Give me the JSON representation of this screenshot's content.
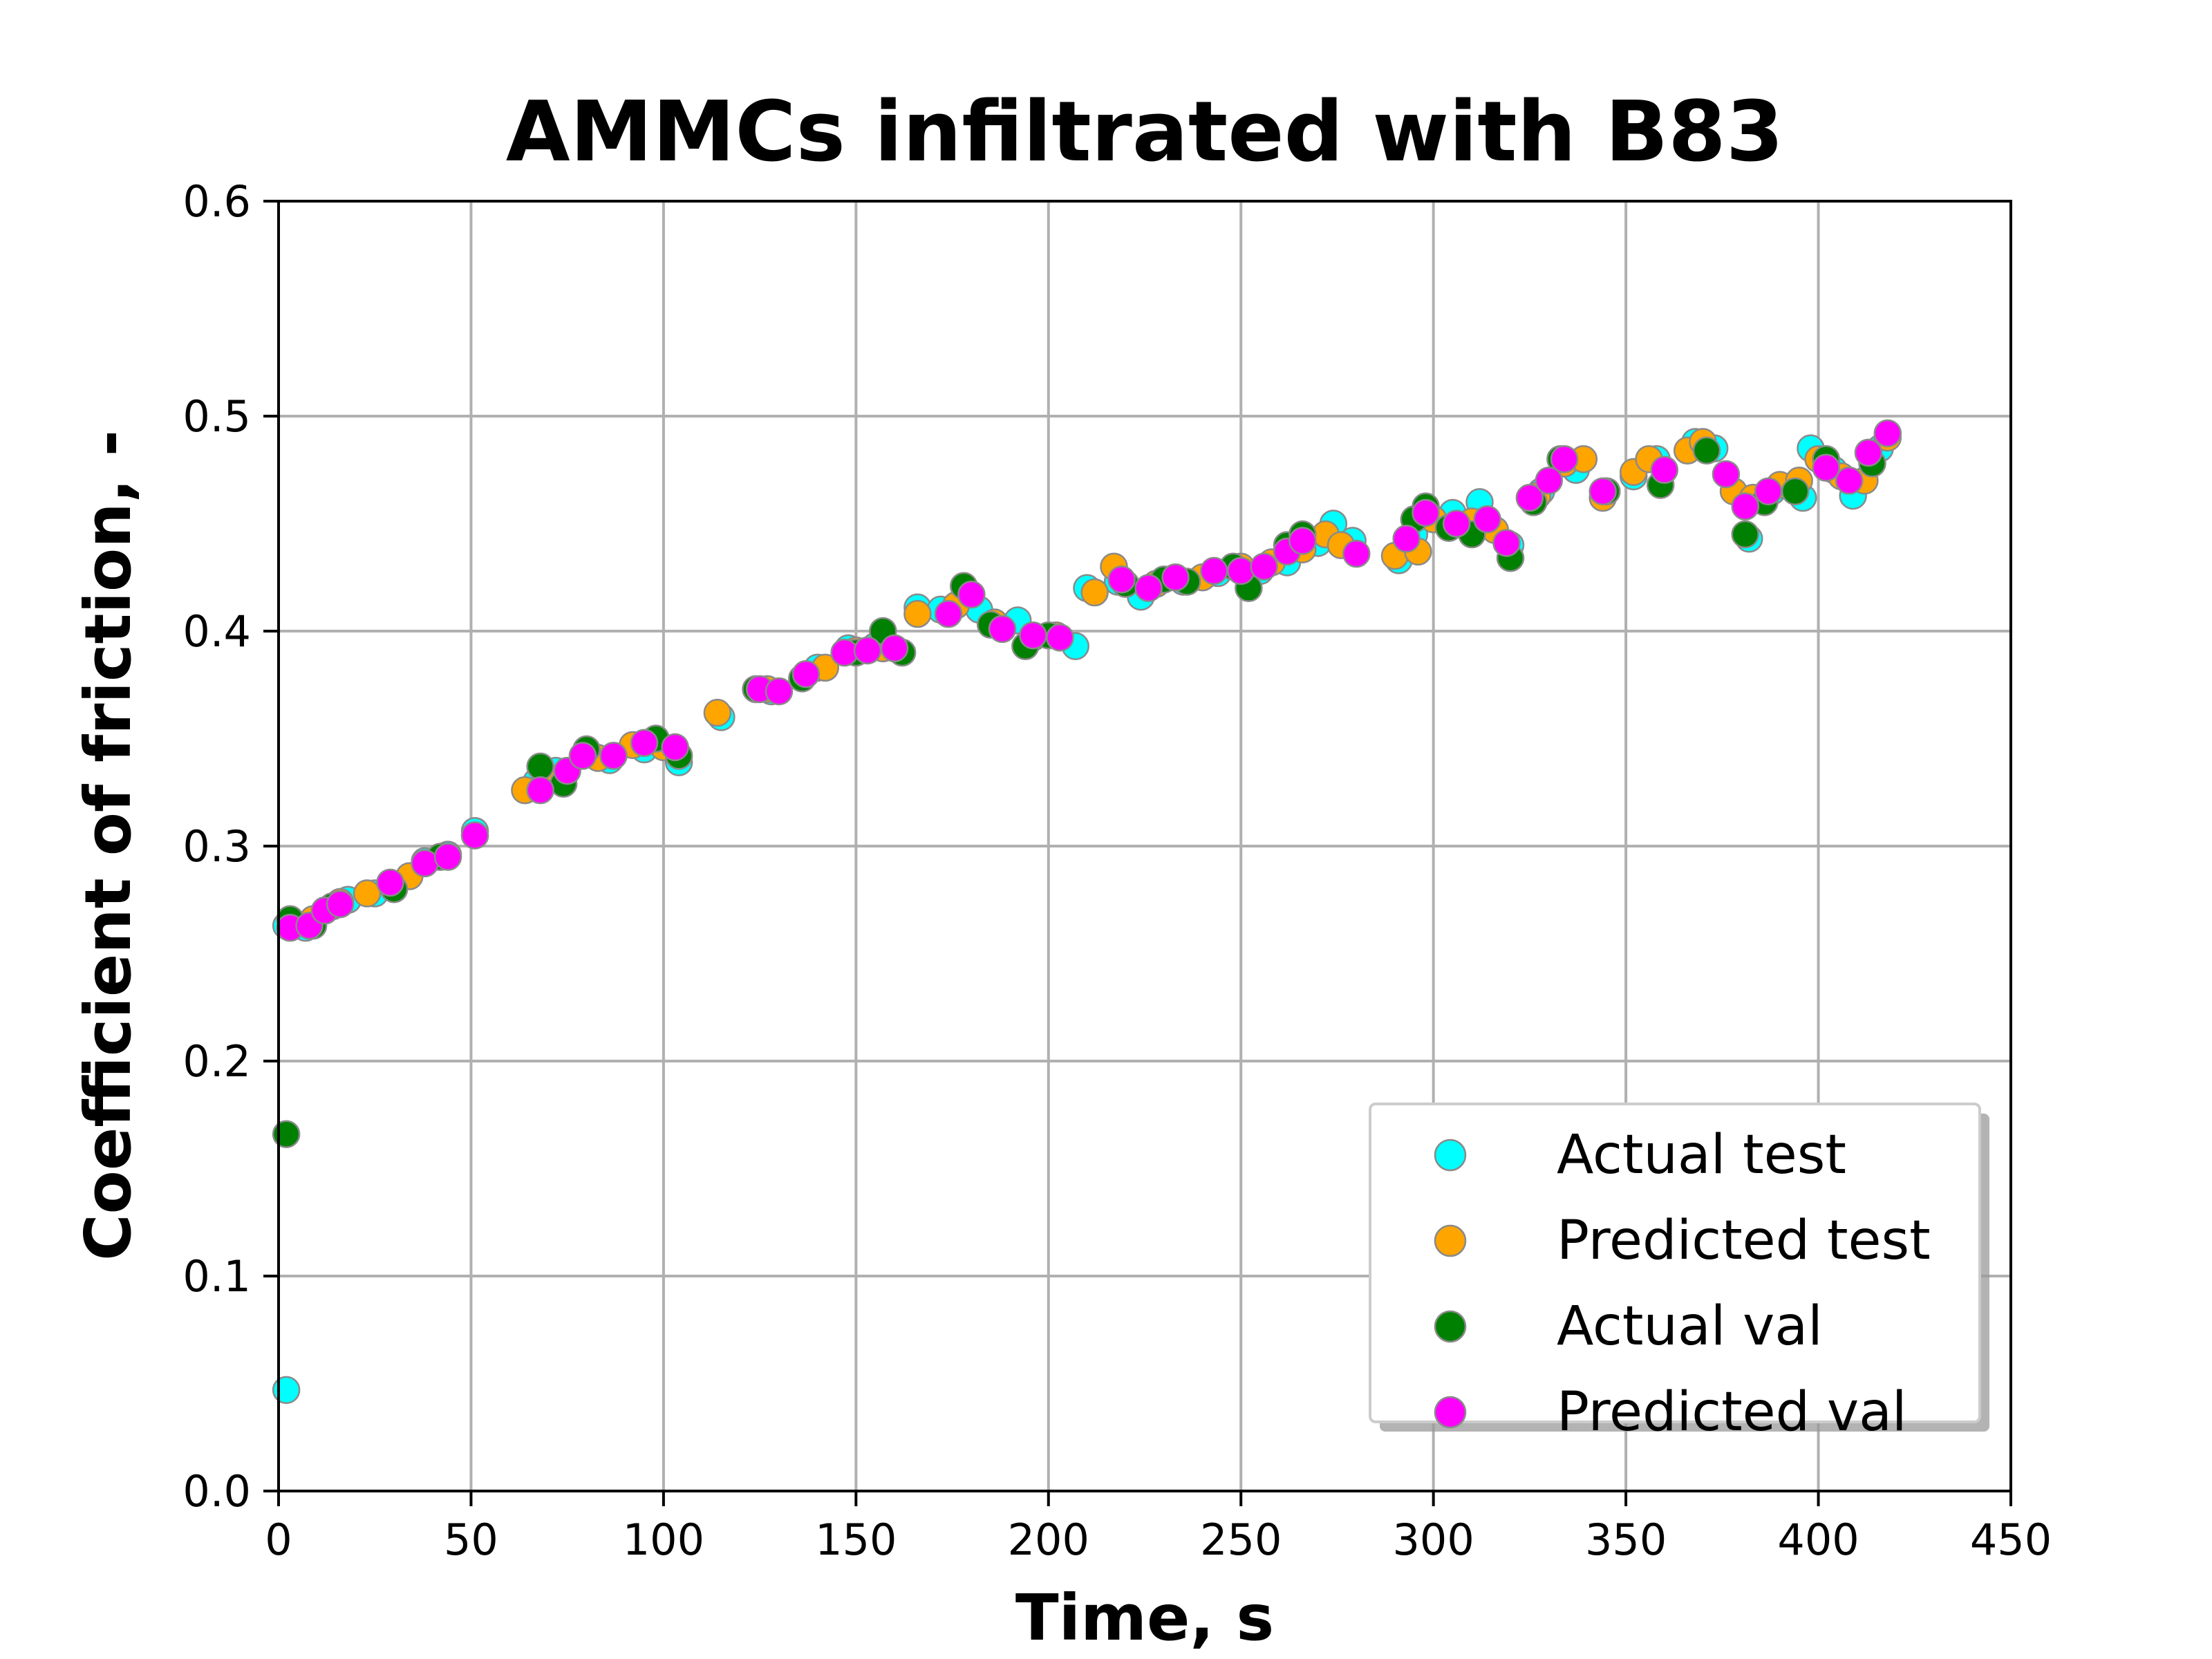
{
  "chart_data": {
    "type": "scatter",
    "title": "AMMCs infiltrated with B83",
    "xlabel": "Time, s",
    "ylabel": "Coefficient of friction, -",
    "xlim": [
      0,
      450
    ],
    "ylim": [
      0.0,
      0.6
    ],
    "xticks": [
      "0",
      "50",
      "100",
      "150",
      "200",
      "250",
      "300",
      "350",
      "400",
      "450"
    ],
    "yticks": [
      "0.0",
      "0.1",
      "0.2",
      "0.3",
      "0.4",
      "0.5",
      "0.6"
    ],
    "grid": true,
    "legend_position": "lower-right",
    "series": [
      {
        "name": "Actual test",
        "color": "#00ffff",
        "points": [
          [
            2,
            0.047
          ],
          [
            2,
            0.263
          ],
          [
            7,
            0.262
          ],
          [
            12,
            0.27
          ],
          [
            18,
            0.275
          ],
          [
            25,
            0.278
          ],
          [
            30,
            0.28
          ],
          [
            38,
            0.293
          ],
          [
            44,
            0.296
          ],
          [
            51,
            0.307
          ],
          [
            67,
            0.33
          ],
          [
            72,
            0.335
          ],
          [
            80,
            0.343
          ],
          [
            86,
            0.34
          ],
          [
            95,
            0.345
          ],
          [
            104,
            0.339
          ],
          [
            115,
            0.36
          ],
          [
            128,
            0.372
          ],
          [
            140,
            0.383
          ],
          [
            148,
            0.392
          ],
          [
            155,
            0.393
          ],
          [
            166,
            0.411
          ],
          [
            172,
            0.41
          ],
          [
            182,
            0.41
          ],
          [
            192,
            0.405
          ],
          [
            207,
            0.393
          ],
          [
            210,
            0.42
          ],
          [
            218,
            0.423
          ],
          [
            224,
            0.416
          ],
          [
            235,
            0.423
          ],
          [
            244,
            0.427
          ],
          [
            255,
            0.428
          ],
          [
            262,
            0.432
          ],
          [
            270,
            0.441
          ],
          [
            274,
            0.45
          ],
          [
            279,
            0.442
          ],
          [
            291,
            0.433
          ],
          [
            295,
            0.445
          ],
          [
            305,
            0.455
          ],
          [
            312,
            0.46
          ],
          [
            320,
            0.44
          ],
          [
            328,
            0.465
          ],
          [
            337,
            0.475
          ],
          [
            345,
            0.465
          ],
          [
            352,
            0.472
          ],
          [
            358,
            0.48
          ],
          [
            368,
            0.488
          ],
          [
            373,
            0.485
          ],
          [
            382,
            0.443
          ],
          [
            388,
            0.465
          ],
          [
            396,
            0.462
          ],
          [
            398,
            0.485
          ],
          [
            404,
            0.475
          ],
          [
            409,
            0.463
          ],
          [
            416,
            0.485
          ]
        ]
      },
      {
        "name": "Predicted test",
        "color": "#ffa500",
        "points": [
          [
            4,
            0.264
          ],
          [
            9,
            0.266
          ],
          [
            16,
            0.274
          ],
          [
            23,
            0.278
          ],
          [
            34,
            0.286
          ],
          [
            42,
            0.295
          ],
          [
            51,
            0.305
          ],
          [
            64,
            0.326
          ],
          [
            70,
            0.332
          ],
          [
            83,
            0.341
          ],
          [
            92,
            0.347
          ],
          [
            100,
            0.346
          ],
          [
            114,
            0.362
          ],
          [
            127,
            0.373
          ],
          [
            142,
            0.383
          ],
          [
            150,
            0.391
          ],
          [
            157,
            0.392
          ],
          [
            166,
            0.408
          ],
          [
            176,
            0.412
          ],
          [
            186,
            0.404
          ],
          [
            196,
            0.397
          ],
          [
            202,
            0.398
          ],
          [
            212,
            0.418
          ],
          [
            217,
            0.43
          ],
          [
            228,
            0.422
          ],
          [
            240,
            0.425
          ],
          [
            250,
            0.43
          ],
          [
            258,
            0.432
          ],
          [
            266,
            0.438
          ],
          [
            272,
            0.445
          ],
          [
            276,
            0.44
          ],
          [
            290,
            0.435
          ],
          [
            296,
            0.437
          ],
          [
            300,
            0.452
          ],
          [
            310,
            0.451
          ],
          [
            316,
            0.447
          ],
          [
            327,
            0.463
          ],
          [
            334,
            0.478
          ],
          [
            339,
            0.48
          ],
          [
            344,
            0.462
          ],
          [
            352,
            0.474
          ],
          [
            356,
            0.48
          ],
          [
            366,
            0.484
          ],
          [
            370,
            0.488
          ],
          [
            378,
            0.465
          ],
          [
            383,
            0.462
          ],
          [
            390,
            0.468
          ],
          [
            395,
            0.47
          ],
          [
            400,
            0.48
          ],
          [
            406,
            0.472
          ],
          [
            412,
            0.47
          ],
          [
            418,
            0.49
          ]
        ]
      },
      {
        "name": "Actual val",
        "color": "#008000",
        "points": [
          [
            2,
            0.166
          ],
          [
            3,
            0.266
          ],
          [
            9,
            0.263
          ],
          [
            14,
            0.272
          ],
          [
            30,
            0.28
          ],
          [
            42,
            0.295
          ],
          [
            68,
            0.337
          ],
          [
            74,
            0.329
          ],
          [
            80,
            0.345
          ],
          [
            98,
            0.35
          ],
          [
            104,
            0.342
          ],
          [
            124,
            0.373
          ],
          [
            136,
            0.378
          ],
          [
            150,
            0.39
          ],
          [
            157,
            0.4
          ],
          [
            162,
            0.39
          ],
          [
            178,
            0.421
          ],
          [
            185,
            0.403
          ],
          [
            194,
            0.393
          ],
          [
            200,
            0.398
          ],
          [
            220,
            0.422
          ],
          [
            230,
            0.424
          ],
          [
            236,
            0.423
          ],
          [
            248,
            0.43
          ],
          [
            252,
            0.42
          ],
          [
            262,
            0.44
          ],
          [
            266,
            0.445
          ],
          [
            295,
            0.452
          ],
          [
            298,
            0.458
          ],
          [
            304,
            0.448
          ],
          [
            310,
            0.445
          ],
          [
            320,
            0.434
          ],
          [
            326,
            0.46
          ],
          [
            333,
            0.48
          ],
          [
            345,
            0.465
          ],
          [
            359,
            0.468
          ],
          [
            371,
            0.484
          ],
          [
            381,
            0.445
          ],
          [
            386,
            0.46
          ],
          [
            394,
            0.465
          ],
          [
            402,
            0.48
          ],
          [
            408,
            0.47
          ],
          [
            414,
            0.478
          ]
        ]
      },
      {
        "name": "Predicted val",
        "color": "#ff00ff",
        "points": [
          [
            3,
            0.262
          ],
          [
            8,
            0.263
          ],
          [
            12,
            0.27
          ],
          [
            16,
            0.273
          ],
          [
            29,
            0.283
          ],
          [
            38,
            0.292
          ],
          [
            44,
            0.295
          ],
          [
            51,
            0.305
          ],
          [
            68,
            0.326
          ],
          [
            75,
            0.335
          ],
          [
            79,
            0.342
          ],
          [
            87,
            0.342
          ],
          [
            95,
            0.348
          ],
          [
            103,
            0.346
          ],
          [
            125,
            0.373
          ],
          [
            130,
            0.372
          ],
          [
            137,
            0.38
          ],
          [
            147,
            0.39
          ],
          [
            153,
            0.391
          ],
          [
            160,
            0.392
          ],
          [
            174,
            0.408
          ],
          [
            180,
            0.417
          ],
          [
            188,
            0.401
          ],
          [
            196,
            0.398
          ],
          [
            203,
            0.397
          ],
          [
            219,
            0.424
          ],
          [
            226,
            0.42
          ],
          [
            233,
            0.425
          ],
          [
            243,
            0.428
          ],
          [
            250,
            0.428
          ],
          [
            256,
            0.43
          ],
          [
            262,
            0.437
          ],
          [
            266,
            0.442
          ],
          [
            280,
            0.436
          ],
          [
            293,
            0.443
          ],
          [
            298,
            0.455
          ],
          [
            306,
            0.45
          ],
          [
            314,
            0.452
          ],
          [
            319,
            0.441
          ],
          [
            325,
            0.462
          ],
          [
            330,
            0.47
          ],
          [
            334,
            0.48
          ],
          [
            344,
            0.465
          ],
          [
            360,
            0.475
          ],
          [
            376,
            0.473
          ],
          [
            381,
            0.458
          ],
          [
            387,
            0.465
          ],
          [
            402,
            0.476
          ],
          [
            408,
            0.47
          ],
          [
            413,
            0.483
          ],
          [
            418,
            0.492
          ]
        ]
      }
    ]
  }
}
